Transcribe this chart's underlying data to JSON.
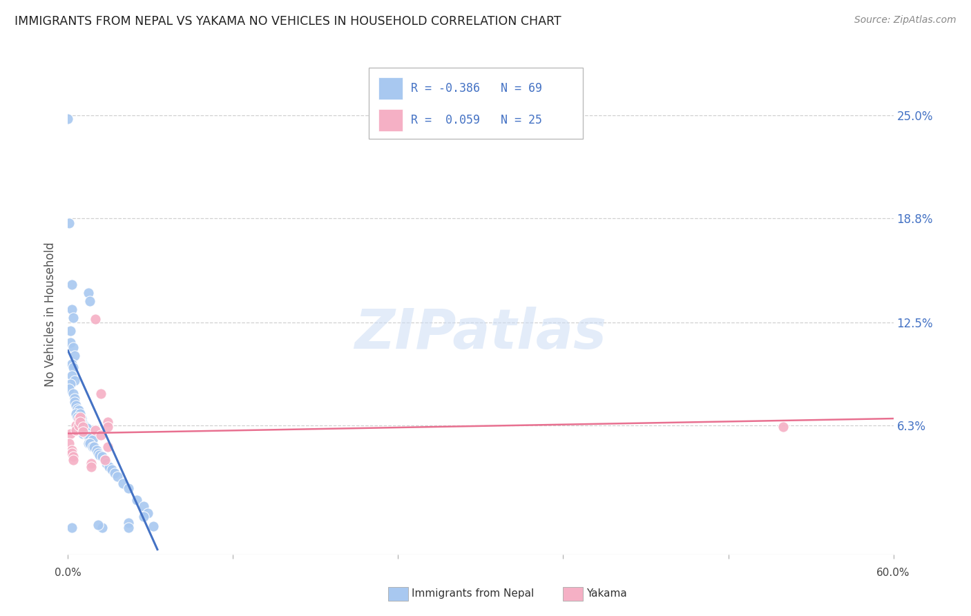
{
  "title": "IMMIGRANTS FROM NEPAL VS YAKAMA NO VEHICLES IN HOUSEHOLD CORRELATION CHART",
  "source": "Source: ZipAtlas.com",
  "ylabel": "No Vehicles in Household",
  "ytick_labels": [
    "25.0%",
    "18.8%",
    "12.5%",
    "6.3%"
  ],
  "ytick_values": [
    0.25,
    0.188,
    0.125,
    0.063
  ],
  "xlim": [
    0.0,
    0.6
  ],
  "ylim": [
    -0.015,
    0.275
  ],
  "watermark_text": "ZIPatlas",
  "legend_r1": "R = -0.386   N = 69",
  "legend_r2": "R =  0.059   N = 25",
  "legend_label1": "Immigrants from Nepal",
  "legend_label2": "Yakama",
  "blue_scatter": [
    [
      0.0,
      0.248
    ],
    [
      0.001,
      0.185
    ],
    [
      0.003,
      0.148
    ],
    [
      0.003,
      0.133
    ],
    [
      0.004,
      0.128
    ],
    [
      0.015,
      0.143
    ],
    [
      0.016,
      0.138
    ],
    [
      0.002,
      0.12
    ],
    [
      0.002,
      0.113
    ],
    [
      0.004,
      0.11
    ],
    [
      0.005,
      0.105
    ],
    [
      0.003,
      0.1
    ],
    [
      0.004,
      0.098
    ],
    [
      0.003,
      0.093
    ],
    [
      0.005,
      0.09
    ],
    [
      0.002,
      0.088
    ],
    [
      0.001,
      0.085
    ],
    [
      0.004,
      0.082
    ],
    [
      0.005,
      0.079
    ],
    [
      0.005,
      0.077
    ],
    [
      0.006,
      0.075
    ],
    [
      0.007,
      0.073
    ],
    [
      0.008,
      0.072
    ],
    [
      0.006,
      0.07
    ],
    [
      0.009,
      0.07
    ],
    [
      0.007,
      0.068
    ],
    [
      0.01,
      0.067
    ],
    [
      0.009,
      0.066
    ],
    [
      0.01,
      0.065
    ],
    [
      0.011,
      0.064
    ],
    [
      0.012,
      0.063
    ],
    [
      0.008,
      0.063
    ],
    [
      0.013,
      0.062
    ],
    [
      0.011,
      0.062
    ],
    [
      0.014,
      0.061
    ],
    [
      0.01,
      0.06
    ],
    [
      0.012,
      0.06
    ],
    [
      0.013,
      0.059
    ],
    [
      0.011,
      0.058
    ],
    [
      0.014,
      0.057
    ],
    [
      0.015,
      0.056
    ],
    [
      0.016,
      0.055
    ],
    [
      0.018,
      0.054
    ],
    [
      0.015,
      0.052
    ],
    [
      0.016,
      0.052
    ],
    [
      0.018,
      0.05
    ],
    [
      0.019,
      0.05
    ],
    [
      0.021,
      0.048
    ],
    [
      0.022,
      0.046
    ],
    [
      0.023,
      0.045
    ],
    [
      0.025,
      0.044
    ],
    [
      0.027,
      0.042
    ],
    [
      0.028,
      0.04
    ],
    [
      0.03,
      0.038
    ],
    [
      0.032,
      0.036
    ],
    [
      0.034,
      0.034
    ],
    [
      0.036,
      0.032
    ],
    [
      0.04,
      0.028
    ],
    [
      0.044,
      0.025
    ],
    [
      0.05,
      0.018
    ],
    [
      0.055,
      0.014
    ],
    [
      0.058,
      0.01
    ],
    [
      0.055,
      0.008
    ],
    [
      0.044,
      0.004
    ],
    [
      0.062,
      0.002
    ],
    [
      0.003,
      0.001
    ],
    [
      0.025,
      0.001
    ],
    [
      0.044,
      0.001
    ],
    [
      0.022,
      0.003
    ]
  ],
  "pink_scatter": [
    [
      0.002,
      0.058
    ],
    [
      0.001,
      0.052
    ],
    [
      0.003,
      0.048
    ],
    [
      0.003,
      0.046
    ],
    [
      0.004,
      0.044
    ],
    [
      0.004,
      0.042
    ],
    [
      0.006,
      0.063
    ],
    [
      0.006,
      0.06
    ],
    [
      0.008,
      0.067
    ],
    [
      0.008,
      0.063
    ],
    [
      0.009,
      0.068
    ],
    [
      0.009,
      0.065
    ],
    [
      0.011,
      0.062
    ],
    [
      0.011,
      0.059
    ],
    [
      0.02,
      0.127
    ],
    [
      0.02,
      0.06
    ],
    [
      0.024,
      0.082
    ],
    [
      0.024,
      0.057
    ],
    [
      0.029,
      0.065
    ],
    [
      0.029,
      0.062
    ],
    [
      0.029,
      0.05
    ],
    [
      0.027,
      0.042
    ],
    [
      0.017,
      0.04
    ],
    [
      0.017,
      0.038
    ],
    [
      0.52,
      0.062
    ]
  ],
  "blue_line_x": [
    0.0,
    0.065
  ],
  "blue_line_y": [
    0.108,
    -0.012
  ],
  "pink_line_x": [
    0.0,
    0.6
  ],
  "pink_line_y": [
    0.058,
    0.067
  ],
  "blue_color": "#A8C8F0",
  "pink_color": "#F5B0C5",
  "blue_line_color": "#4472C4",
  "pink_line_color": "#E87090",
  "grid_color": "#d0d0d0",
  "background_color": "#ffffff"
}
